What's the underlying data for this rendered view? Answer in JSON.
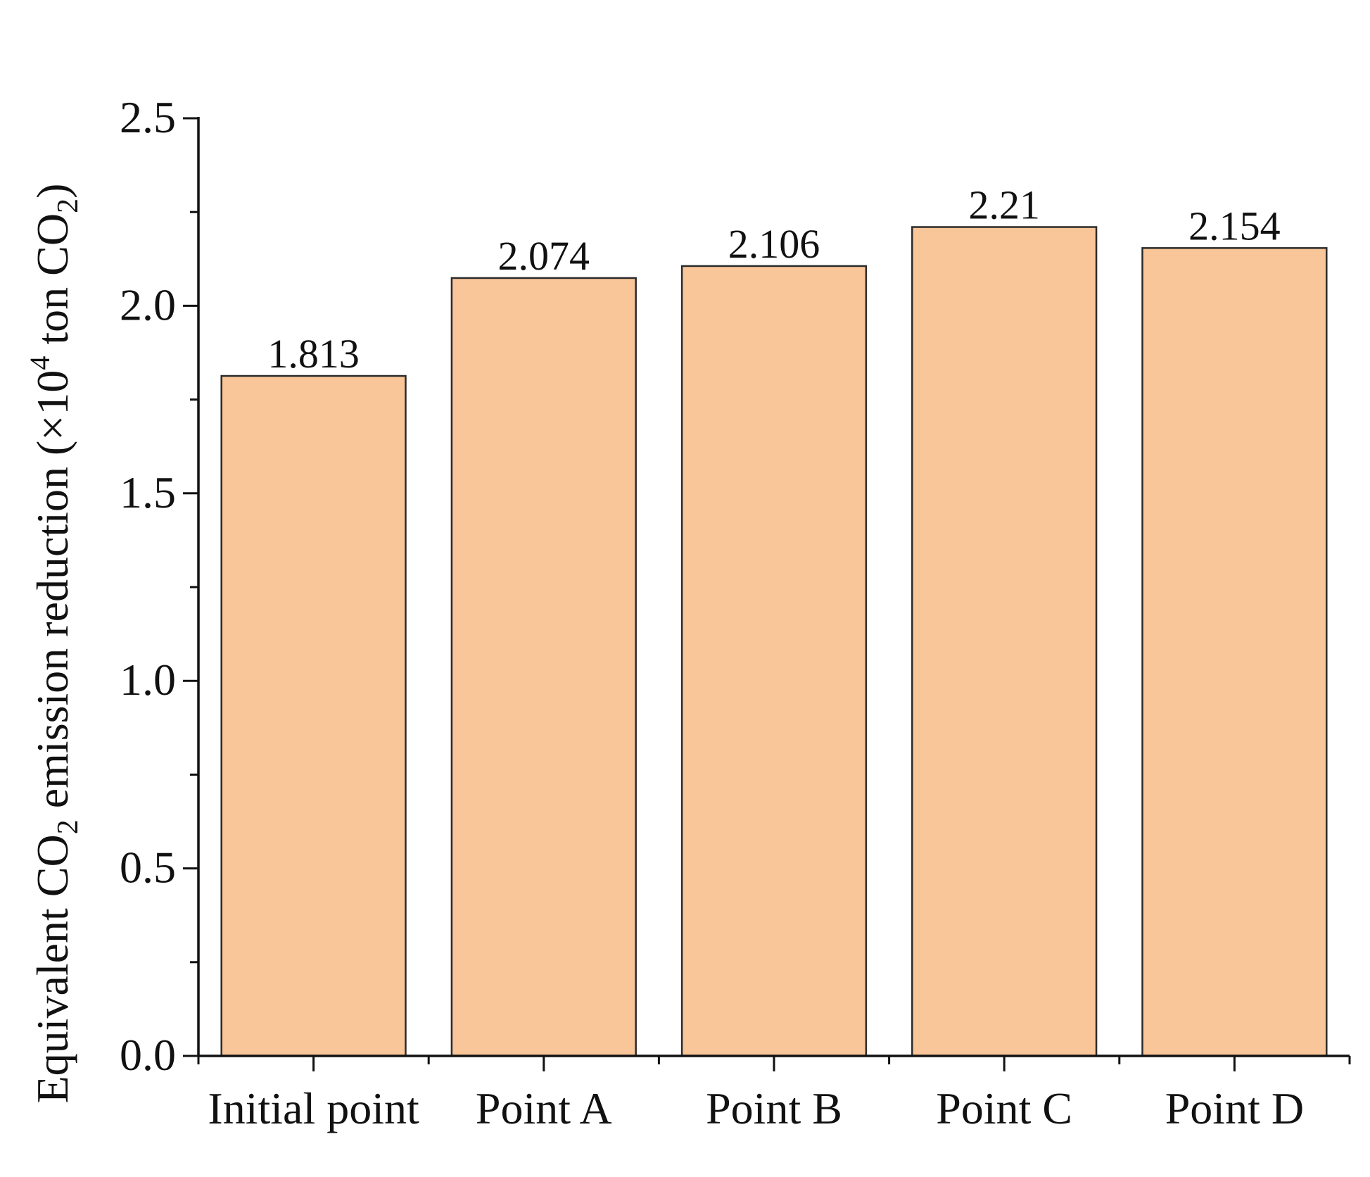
{
  "chart_data": {
    "type": "bar",
    "categories": [
      "Initial point",
      "Point A",
      "Point B",
      "Point C",
      "Point D"
    ],
    "values": [
      1.813,
      2.074,
      2.106,
      2.21,
      2.154
    ],
    "value_labels": [
      "1.813",
      "2.074",
      "2.106",
      "2.21",
      "2.154"
    ],
    "ylim": [
      0,
      2.5
    ],
    "yticks": [
      0,
      0.5,
      1.0,
      1.5,
      2.0,
      2.5
    ],
    "ytick_labels": [
      "0.0",
      "0.5",
      "1.0",
      "1.5",
      "2.0",
      "2.5"
    ],
    "ylabel": {
      "main": "Equivalent CO",
      "sub1": "2",
      "mid": " emission reduction (×10",
      "sup": "4",
      "mid2": " ton CO",
      "sub2": "2",
      "end": ")"
    },
    "grid": false,
    "colors": {
      "bar_fill": "#F9C69A",
      "bar_stroke": "#2b2b2b",
      "axis": "#111111"
    }
  }
}
